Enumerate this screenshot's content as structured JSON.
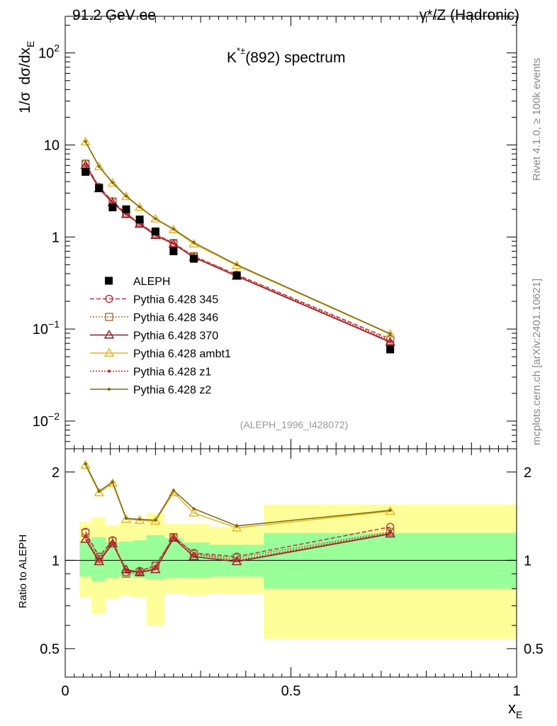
{
  "header": {
    "left": "91.2 GeV ee",
    "right_prefix": "γ*/Z",
    "right_suffix": "(Hadronic)"
  },
  "title": {
    "main": "K",
    "sup": "*±",
    "rest": "(892) spectrum"
  },
  "side_labels": {
    "rivet": "Rivet 4.1.0, ≥ 100k events",
    "mcplots": "mcplots.cern.ch [arXiv:2401.10621]"
  },
  "watermark": "(ALEPH_1996_I428072)",
  "ylabel_main": {
    "a": "1/σ",
    "b": "dσ/dx",
    "sub": "E"
  },
  "ylabel_ratio": "Ratio to ALEPH",
  "xlabel": {
    "base": "x",
    "sub": "E"
  },
  "colors": {
    "band_yellow": "#ffff99",
    "band_green": "#99ff99"
  },
  "chart_data": [
    {
      "type": "scatter",
      "panel": "main",
      "title": "K*±(892) spectrum",
      "xlabel": "x_E",
      "ylabel": "1/σ dσ/dx_E",
      "xlim": [
        0,
        1
      ],
      "ylim": [
        0.005,
        250
      ],
      "yscale": "log",
      "yticks": [
        {
          "v": 100,
          "m": "10",
          "e": "2"
        },
        {
          "v": 10,
          "m": "10",
          "e": ""
        },
        {
          "v": 1,
          "m": "1",
          "e": ""
        },
        {
          "v": 0.1,
          "m": "10",
          "e": "−1"
        },
        {
          "v": 0.01,
          "m": "10",
          "e": "−2"
        }
      ],
      "legend_position": "center-left",
      "reference": {
        "name": "ALEPH",
        "x": [
          0.045,
          0.075,
          0.105,
          0.135,
          0.165,
          0.2,
          0.24,
          0.285,
          0.38,
          0.72
        ],
        "y": [
          5.1,
          3.4,
          2.1,
          2.0,
          1.55,
          1.15,
          0.7,
          0.58,
          0.38,
          0.06
        ],
        "xerr": [
          [
            0.032,
            0.058
          ],
          [
            0.058,
            0.09
          ],
          [
            0.09,
            0.12
          ],
          [
            0.12,
            0.15
          ],
          [
            0.15,
            0.18
          ],
          [
            0.18,
            0.22
          ],
          [
            0.22,
            0.26
          ],
          [
            0.26,
            0.32
          ],
          [
            0.32,
            0.44
          ],
          [
            0.44,
            1.0
          ]
        ]
      },
      "series": [
        {
          "name": "Pythia 6.428 345",
          "color": "#b5344a",
          "dash": "6,3",
          "marker": "circle",
          "x": [
            0.045,
            0.075,
            0.105,
            0.135,
            0.165,
            0.2,
            0.24,
            0.285,
            0.38,
            0.72
          ],
          "y": [
            6.3,
            3.5,
            2.45,
            1.8,
            1.42,
            1.07,
            0.86,
            0.62,
            0.39,
            0.078
          ]
        },
        {
          "name": "Pythia 6.428 346",
          "color": "#a0703a",
          "dash": "2,2",
          "marker": "square",
          "x": [
            0.045,
            0.075,
            0.105,
            0.135,
            0.165,
            0.2,
            0.24,
            0.285,
            0.38,
            0.72
          ],
          "y": [
            6.25,
            3.45,
            2.42,
            1.78,
            1.41,
            1.08,
            0.86,
            0.62,
            0.385,
            0.075
          ]
        },
        {
          "name": "Pythia 6.428 370",
          "color": "#8b1a2a",
          "dash": "",
          "marker": "triangle",
          "x": [
            0.045,
            0.075,
            0.105,
            0.135,
            0.165,
            0.2,
            0.24,
            0.285,
            0.38,
            0.72
          ],
          "y": [
            6.0,
            3.35,
            2.35,
            1.76,
            1.38,
            1.04,
            0.84,
            0.6,
            0.375,
            0.072
          ]
        },
        {
          "name": "Pythia 6.428 ambt1",
          "color": "#e8b420",
          "dash": "",
          "marker": "triangle",
          "x": [
            0.045,
            0.075,
            0.105,
            0.135,
            0.165,
            0.2,
            0.24,
            0.285,
            0.38,
            0.72
          ],
          "y": [
            10.8,
            5.8,
            3.85,
            2.75,
            2.1,
            1.57,
            1.2,
            0.84,
            0.49,
            0.088
          ]
        },
        {
          "name": "Pythia 6.428 z1",
          "color": "#e02020",
          "dash": "2,2",
          "marker": "dot",
          "x": [
            0.045,
            0.075,
            0.105,
            0.135,
            0.165,
            0.2,
            0.24,
            0.285,
            0.38,
            0.72
          ],
          "y": [
            6.1,
            3.4,
            2.38,
            1.77,
            1.39,
            1.05,
            0.85,
            0.61,
            0.38,
            0.074
          ]
        },
        {
          "name": "Pythia 6.428 z2",
          "color": "#7a6a10",
          "dash": "",
          "marker": "dot",
          "x": [
            0.045,
            0.075,
            0.105,
            0.135,
            0.165,
            0.2,
            0.24,
            0.285,
            0.38,
            0.72
          ],
          "y": [
            10.9,
            5.85,
            3.9,
            2.78,
            2.12,
            1.58,
            1.22,
            0.87,
            0.5,
            0.089
          ]
        }
      ]
    },
    {
      "type": "line",
      "panel": "ratio",
      "ylabel": "Ratio to ALEPH",
      "xlabel": "x_E",
      "xlim": [
        0,
        1
      ],
      "ylim": [
        0.4,
        2.4
      ],
      "yscale": "log",
      "yticks": [
        {
          "v": 0.5,
          "label": "0.5"
        },
        {
          "v": 1,
          "label": "1"
        },
        {
          "v": 2,
          "label": "2"
        }
      ],
      "xticks": [
        {
          "v": 0,
          "label": "0"
        },
        {
          "v": 0.5,
          "label": "0.5"
        },
        {
          "v": 1,
          "label": "1"
        }
      ],
      "bands": [
        {
          "x0": 0.032,
          "x1": 0.058,
          "g": [
            0.88,
            1.16
          ],
          "y": [
            0.75,
            1.35
          ]
        },
        {
          "x0": 0.058,
          "x1": 0.09,
          "g": [
            0.85,
            1.2
          ],
          "y": [
            0.66,
            1.4
          ]
        },
        {
          "x0": 0.09,
          "x1": 0.12,
          "g": [
            0.87,
            1.15
          ],
          "y": [
            0.74,
            1.32
          ]
        },
        {
          "x0": 0.12,
          "x1": 0.15,
          "g": [
            0.88,
            1.16
          ],
          "y": [
            0.76,
            1.36
          ]
        },
        {
          "x0": 0.15,
          "x1": 0.18,
          "g": [
            0.87,
            1.17
          ],
          "y": [
            0.75,
            1.34
          ]
        },
        {
          "x0": 0.18,
          "x1": 0.22,
          "g": [
            0.86,
            1.22
          ],
          "y": [
            0.6,
            1.45
          ]
        },
        {
          "x0": 0.22,
          "x1": 0.26,
          "g": [
            0.87,
            1.19
          ],
          "y": [
            0.77,
            1.33
          ]
        },
        {
          "x0": 0.26,
          "x1": 0.32,
          "g": [
            0.87,
            1.15
          ],
          "y": [
            0.76,
            1.33
          ]
        },
        {
          "x0": 0.32,
          "x1": 0.44,
          "g": [
            0.88,
            1.13
          ],
          "y": [
            0.77,
            1.3
          ]
        },
        {
          "x0": 0.44,
          "x1": 1.0,
          "g": [
            0.8,
            1.24
          ],
          "y": [
            0.54,
            1.55
          ]
        }
      ],
      "series": [
        {
          "name": "Pythia 6.428 345",
          "color": "#b5344a",
          "dash": "6,3",
          "marker": "circle",
          "y": [
            1.25,
            1.03,
            1.17,
            0.91,
            0.92,
            0.96,
            1.2,
            1.06,
            1.03,
            1.3
          ]
        },
        {
          "name": "Pythia 6.428 346",
          "color": "#a0703a",
          "dash": "2,2",
          "marker": "square",
          "y": [
            1.24,
            1.01,
            1.16,
            0.9,
            0.91,
            0.96,
            1.2,
            1.05,
            1.02,
            1.25
          ]
        },
        {
          "name": "Pythia 6.428 370",
          "color": "#8b1a2a",
          "dash": "",
          "marker": "triangle",
          "y": [
            1.18,
            0.99,
            1.14,
            0.93,
            0.91,
            0.93,
            1.19,
            1.03,
            0.99,
            1.23
          ]
        },
        {
          "name": "Pythia 6.428 ambt1",
          "color": "#e8b420",
          "dash": "",
          "marker": "triangle",
          "y": [
            2.11,
            1.7,
            1.83,
            1.38,
            1.37,
            1.36,
            1.7,
            1.45,
            1.29,
            1.47
          ]
        },
        {
          "name": "Pythia 6.428 z1",
          "color": "#e02020",
          "dash": "2,2",
          "marker": "dot",
          "y": [
            1.2,
            1.0,
            1.15,
            0.92,
            0.91,
            0.94,
            1.21,
            1.05,
            1.0,
            1.24
          ]
        },
        {
          "name": "Pythia 6.428 z2",
          "color": "#7a6a10",
          "dash": "",
          "marker": "dot",
          "y": [
            2.13,
            1.72,
            1.85,
            1.39,
            1.38,
            1.37,
            1.73,
            1.5,
            1.31,
            1.48
          ]
        }
      ]
    }
  ]
}
